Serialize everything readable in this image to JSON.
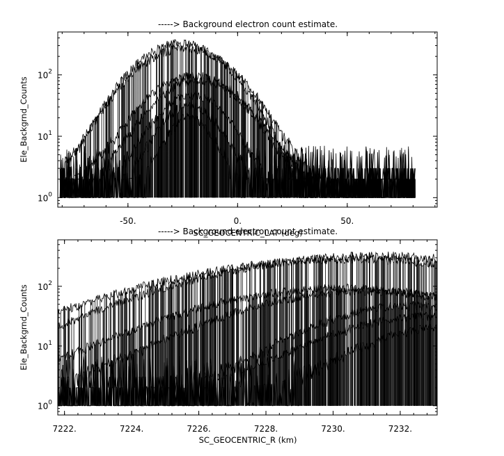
{
  "chart_data": [
    {
      "type": "line",
      "title": "-----> Background electron count estimate.",
      "xlabel": "SC_GEOCENTRIC_LAT (deg)",
      "ylabel": "Ele_Backgrnd_Counts",
      "xlim": [
        -82,
        91
      ],
      "ylim": [
        0.7,
        500
      ],
      "yscale": "log",
      "xticks": [
        {
          "value": -50,
          "label": "-50."
        },
        {
          "value": 0,
          "label": "0."
        },
        {
          "value": 50,
          "label": "50."
        }
      ],
      "yticks": [
        {
          "value": 1,
          "base": "10",
          "exp": "0"
        },
        {
          "value": 10,
          "base": "10",
          "exp": "1"
        },
        {
          "value": 100,
          "base": "10",
          "exp": "2"
        }
      ],
      "noise_range": [
        -81,
        81
      ],
      "series": [
        {
          "center": -26,
          "peak": 320,
          "width": 16
        },
        {
          "center": -24,
          "peak": 270,
          "width": 17
        },
        {
          "center": -20,
          "peak": 95,
          "width": 16
        },
        {
          "center": -18,
          "peak": 80,
          "width": 15
        },
        {
          "center": -21,
          "peak": 45,
          "width": 12
        },
        {
          "center": -22,
          "peak": 30,
          "width": 10
        },
        {
          "center": -22,
          "peak": 18,
          "width": 8
        }
      ]
    },
    {
      "type": "line",
      "title": "-----> Background electron count estimate.",
      "xlabel": "SC_GEOCENTRIC_R (km)",
      "ylabel": "Ele_Backgrnd_Counts",
      "xlim": [
        7221.8,
        7233.1
      ],
      "ylim": [
        0.7,
        600
      ],
      "yscale": "log",
      "xticks": [
        {
          "value": 7222,
          "label": "7222."
        },
        {
          "value": 7224,
          "label": "7224."
        },
        {
          "value": 7226,
          "label": "7226."
        },
        {
          "value": 7228,
          "label": "7228."
        },
        {
          "value": 7230,
          "label": "7230."
        },
        {
          "value": 7232,
          "label": "7232."
        }
      ],
      "yticks": [
        {
          "value": 1,
          "base": "10",
          "exp": "0"
        },
        {
          "value": 10,
          "base": "10",
          "exp": "1"
        },
        {
          "value": 100,
          "base": "10",
          "exp": "2"
        }
      ],
      "series": [
        {
          "center": 7231.3,
          "peak": 320,
          "width": 4.0
        },
        {
          "center": 7230.6,
          "peak": 280,
          "width": 4.3
        },
        {
          "center": 7230.3,
          "peak": 90,
          "width": 3.4
        },
        {
          "center": 7231.0,
          "peak": 80,
          "width": 3.0
        },
        {
          "center": 7232.3,
          "peak": 45,
          "width": 2.2
        },
        {
          "center": 7233.0,
          "peak": 30,
          "width": 2.4
        },
        {
          "center": 7233.2,
          "peak": 18,
          "width": 1.8
        }
      ]
    }
  ]
}
